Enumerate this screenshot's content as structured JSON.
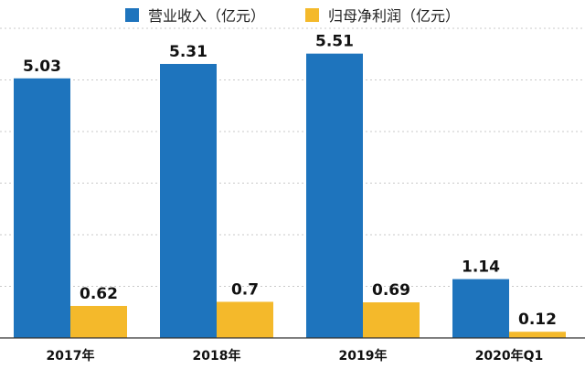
{
  "chart_data": {
    "type": "bar",
    "categories": [
      "2017年",
      "2018年",
      "2019年",
      "2020年Q1"
    ],
    "series": [
      {
        "name": "营业收入（亿元）",
        "values": [
          5.03,
          5.31,
          5.51,
          1.14
        ],
        "color": "#1e74bd"
      },
      {
        "name": "归母净利润（亿元）",
        "values": [
          0.62,
          0.7,
          0.69,
          0.12
        ],
        "color": "#f4b92b"
      }
    ],
    "value_labels": [
      [
        "5.03",
        "5.31",
        "5.51",
        "1.14"
      ],
      [
        "0.62",
        "0.7",
        "0.69",
        "0.12"
      ]
    ],
    "ylim": [
      0,
      6
    ],
    "grid": true,
    "grid_style": "dotted",
    "legend_position": "top-center"
  }
}
